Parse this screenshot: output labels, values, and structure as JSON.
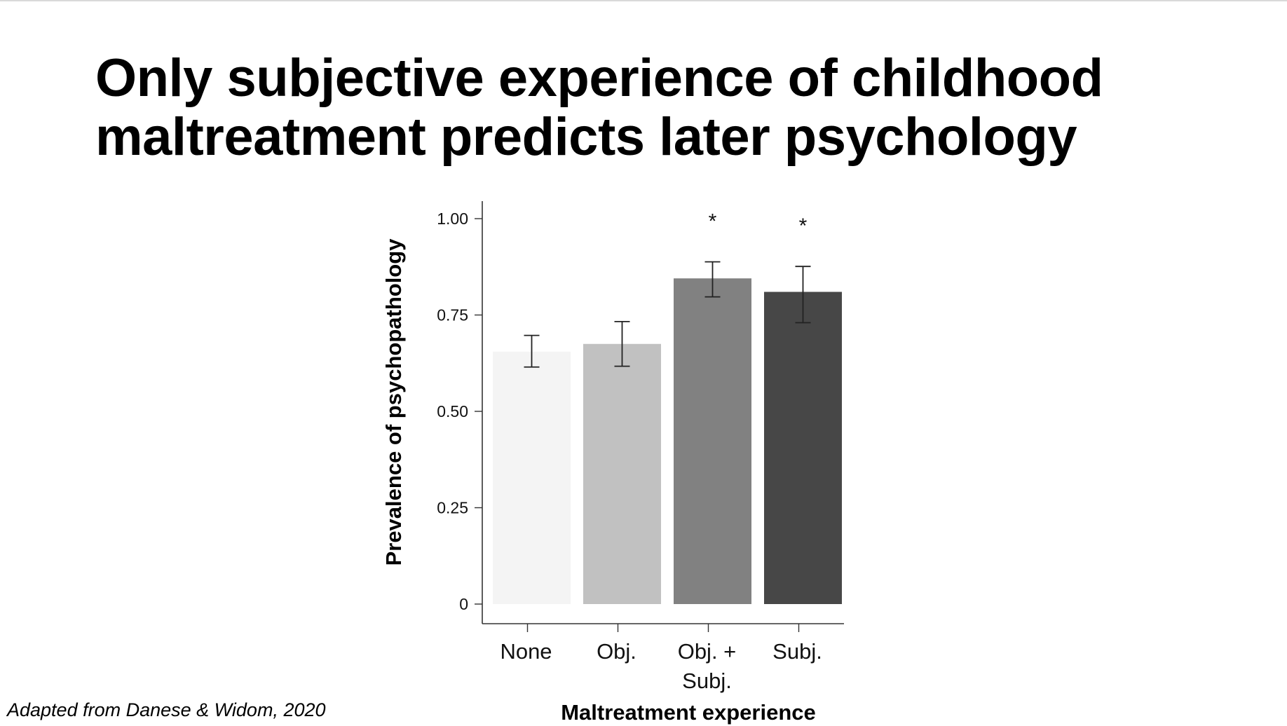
{
  "slide": {
    "title_lines": [
      "Only subjective experience of childhood",
      "maltreatment predicts later psychology"
    ],
    "citation": "Adapted from Danese & Widom, 2020"
  },
  "chart_data": {
    "type": "bar",
    "categories": [
      [
        "None"
      ],
      [
        "Obj."
      ],
      [
        "Obj. +",
        "Subj."
      ],
      [
        "Subj."
      ]
    ],
    "values": [
      0.655,
      0.675,
      0.845,
      0.81
    ],
    "error_bars": [
      {
        "low": 0.615,
        "high": 0.697
      },
      {
        "low": 0.617,
        "high": 0.733
      },
      {
        "low": 0.797,
        "high": 0.888
      },
      {
        "low": 0.73,
        "high": 0.876
      }
    ],
    "significance": [
      "",
      "",
      "*",
      "*"
    ],
    "bar_colors": [
      "#f4f4f4",
      "#c1c1c1",
      "#818181",
      "#474747"
    ],
    "xlabel": "Maltreatment experience",
    "ylabel": "Prevalence of psychopathology",
    "ylim": [
      0,
      1.0
    ],
    "yticks": [
      0,
      0.25,
      0.5,
      0.75,
      1.0
    ],
    "ytick_labels": [
      "0",
      "0.25",
      "0.50",
      "0.75",
      "1.00"
    ],
    "grid": false,
    "legend": "none"
  }
}
